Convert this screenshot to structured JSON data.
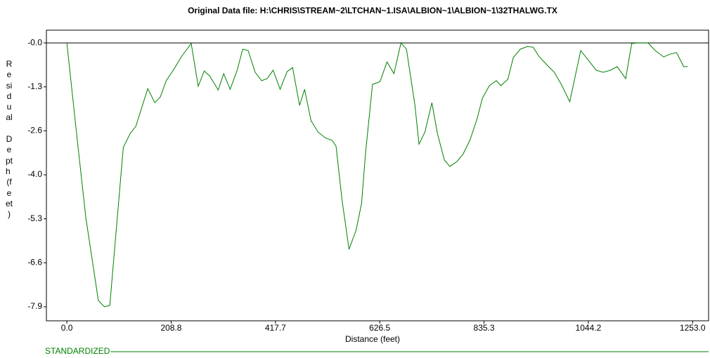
{
  "chart_data": {
    "type": "line",
    "title": "Original Data file: H:\\CHRIS\\STREAM~2\\LTCHAN~1.ISA\\ALBION~1\\ALBION~1\\32THALWG.TX",
    "x_label": "Distance (feet)",
    "y_label": "Residual Depth (feet)",
    "xlim": [
      -41,
      1285
    ],
    "ylim": [
      -8.32,
      0.38
    ],
    "xticks": [
      {
        "value": 0,
        "label": "0.0"
      },
      {
        "value": 208.83,
        "label": "208.8"
      },
      {
        "value": 417.67,
        "label": "417.7"
      },
      {
        "value": 626.5,
        "label": "626.5"
      },
      {
        "value": 835.33,
        "label": "835.3"
      },
      {
        "value": 1044.17,
        "label": "1044.2"
      },
      {
        "value": 1253,
        "label": "1253.0"
      }
    ],
    "yticks": [
      {
        "value": 0,
        "label": "-0.0"
      },
      {
        "value": -1.317,
        "label": "-1.3"
      },
      {
        "value": -2.633,
        "label": "-2.6"
      },
      {
        "value": -3.95,
        "label": "-4.0"
      },
      {
        "value": -5.267,
        "label": "-5.3"
      },
      {
        "value": -6.583,
        "label": "-6.6"
      },
      -7.9
    ],
    "zero_line": true,
    "series": [
      {
        "name": "STANDARDIZED",
        "color": "#008000",
        "x": [
          0,
          21,
          38,
          63,
          75,
          86,
          113,
          127,
          138,
          162,
          176,
          187,
          199,
          213,
          230,
          249,
          263,
          275,
          286,
          303,
          314,
          327,
          341,
          352,
          363,
          377,
          390,
          401,
          413,
          427,
          441,
          452,
          466,
          476,
          489,
          503,
          517,
          531,
          539,
          551,
          565,
          579,
          590,
          598,
          612,
          627,
          641,
          655,
          669,
          680,
          697,
          705,
          717,
          731,
          742,
          756,
          767,
          781,
          793,
          807,
          821,
          832,
          846,
          860,
          869,
          883,
          894,
          908,
          922,
          934,
          945,
          962,
          976,
          990,
          1007,
          1029,
          1046,
          1060,
          1074,
          1088,
          1102,
          1119,
          1131,
          1142,
          1164,
          1178,
          1195,
          1207,
          1221,
          1235,
          1243
        ],
        "values": [
          0,
          -2.92,
          -5.23,
          -7.71,
          -7.9,
          -7.86,
          -3.13,
          -2.71,
          -2.5,
          -1.37,
          -1.79,
          -1.62,
          -1.13,
          -0.82,
          -0.4,
          -0.02,
          -1.3,
          -0.84,
          -0.99,
          -1.41,
          -0.92,
          -1.39,
          -0.82,
          -0.19,
          -0.23,
          -0.88,
          -1.13,
          -1.07,
          -0.82,
          -1.39,
          -0.86,
          -0.74,
          -1.87,
          -1.39,
          -2.33,
          -2.67,
          -2.84,
          -2.92,
          -3.09,
          -4.71,
          -6.18,
          -5.61,
          -4.81,
          -3.3,
          -1.24,
          -1.16,
          -0.57,
          -0.92,
          0,
          -0.19,
          -1.87,
          -3.03,
          -2.67,
          -1.79,
          -2.71,
          -3.51,
          -3.7,
          -3.55,
          -3.34,
          -2.92,
          -2.29,
          -1.66,
          -1.28,
          -1.13,
          -1.28,
          -1.09,
          -0.44,
          -0.19,
          -0.11,
          -0.13,
          -0.4,
          -0.67,
          -0.88,
          -1.24,
          -1.76,
          -0.23,
          -0.55,
          -0.82,
          -0.88,
          -0.82,
          -0.71,
          -1.07,
          -0.02,
          0,
          0,
          -0.23,
          -0.42,
          -0.34,
          -0.29,
          -0.71,
          -0.71
        ]
      }
    ]
  }
}
